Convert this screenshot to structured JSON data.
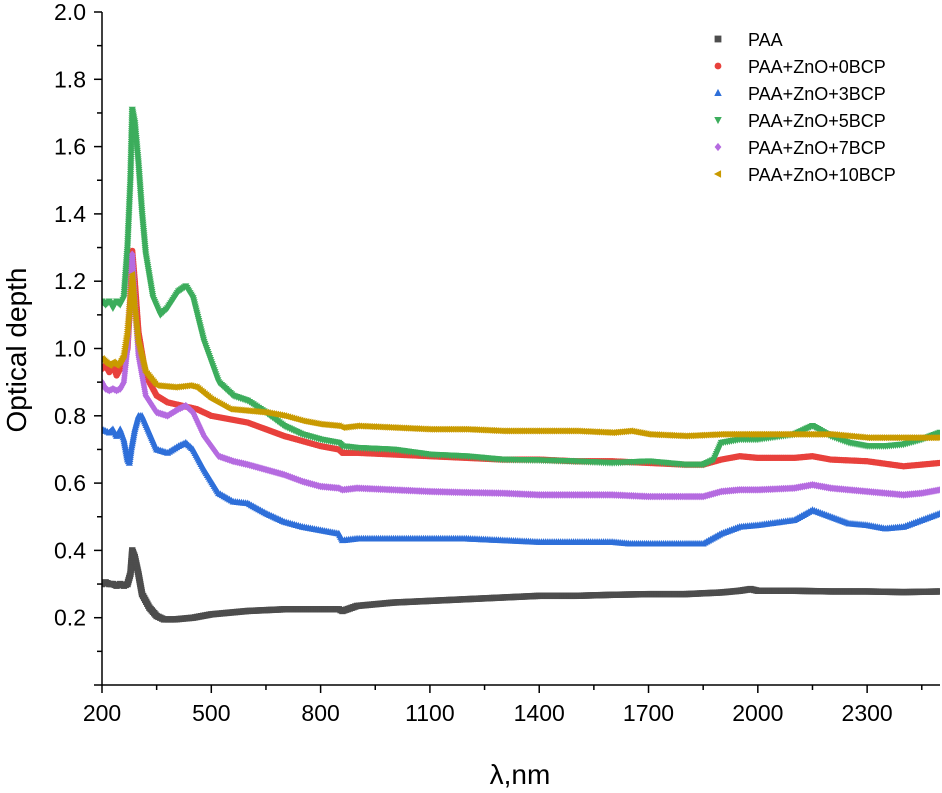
{
  "chart_data": {
    "type": "scatter",
    "title": "",
    "xlabel": "λ,nm",
    "ylabel": "Optical depth",
    "xlim": [
      200,
      2500
    ],
    "ylim": [
      0.0,
      2.0
    ],
    "xticks": [
      200,
      500,
      800,
      1100,
      1400,
      1700,
      2000,
      2300
    ],
    "yticks": [
      "0.2",
      "0.4",
      "0.6",
      "0.8",
      "1.0",
      "1.2",
      "1.4",
      "1.6",
      "1.8",
      "2.0"
    ],
    "legend_position": "top-right",
    "series": [
      {
        "name": "PAA",
        "color": "#4d4d4d",
        "marker": "square",
        "points": [
          [
            200,
            0.3
          ],
          [
            210,
            0.305
          ],
          [
            220,
            0.3
          ],
          [
            230,
            0.3
          ],
          [
            240,
            0.295
          ],
          [
            250,
            0.3
          ],
          [
            260,
            0.295
          ],
          [
            270,
            0.3
          ],
          [
            278,
            0.33
          ],
          [
            283,
            0.4
          ],
          [
            290,
            0.38
          ],
          [
            300,
            0.33
          ],
          [
            310,
            0.27
          ],
          [
            330,
            0.23
          ],
          [
            350,
            0.205
          ],
          [
            370,
            0.195
          ],
          [
            400,
            0.195
          ],
          [
            450,
            0.2
          ],
          [
            500,
            0.21
          ],
          [
            600,
            0.22
          ],
          [
            700,
            0.225
          ],
          [
            800,
            0.225
          ],
          [
            850,
            0.225
          ],
          [
            860,
            0.22
          ],
          [
            900,
            0.235
          ],
          [
            1000,
            0.245
          ],
          [
            1100,
            0.25
          ],
          [
            1200,
            0.255
          ],
          [
            1300,
            0.26
          ],
          [
            1400,
            0.265
          ],
          [
            1500,
            0.265
          ],
          [
            1600,
            0.268
          ],
          [
            1700,
            0.27
          ],
          [
            1800,
            0.27
          ],
          [
            1900,
            0.275
          ],
          [
            1950,
            0.28
          ],
          [
            1980,
            0.285
          ],
          [
            2000,
            0.28
          ],
          [
            2100,
            0.28
          ],
          [
            2200,
            0.278
          ],
          [
            2300,
            0.278
          ],
          [
            2400,
            0.276
          ],
          [
            2500,
            0.278
          ]
        ]
      },
      {
        "name": "PAA+ZnO+0BCP",
        "color": "#e8413c",
        "marker": "circle",
        "points": [
          [
            200,
            0.94
          ],
          [
            210,
            0.95
          ],
          [
            220,
            0.93
          ],
          [
            230,
            0.95
          ],
          [
            240,
            0.92
          ],
          [
            250,
            0.94
          ],
          [
            260,
            0.96
          ],
          [
            270,
            1.0
          ],
          [
            278,
            1.15
          ],
          [
            283,
            1.29
          ],
          [
            290,
            1.2
          ],
          [
            300,
            1.05
          ],
          [
            320,
            0.92
          ],
          [
            350,
            0.86
          ],
          [
            380,
            0.84
          ],
          [
            420,
            0.83
          ],
          [
            460,
            0.82
          ],
          [
            500,
            0.8
          ],
          [
            550,
            0.79
          ],
          [
            600,
            0.78
          ],
          [
            700,
            0.74
          ],
          [
            800,
            0.71
          ],
          [
            850,
            0.7
          ],
          [
            860,
            0.69
          ],
          [
            900,
            0.69
          ],
          [
            1000,
            0.685
          ],
          [
            1100,
            0.68
          ],
          [
            1200,
            0.675
          ],
          [
            1300,
            0.67
          ],
          [
            1400,
            0.67
          ],
          [
            1500,
            0.665
          ],
          [
            1600,
            0.665
          ],
          [
            1700,
            0.66
          ],
          [
            1800,
            0.655
          ],
          [
            1850,
            0.655
          ],
          [
            1900,
            0.67
          ],
          [
            1950,
            0.68
          ],
          [
            2000,
            0.675
          ],
          [
            2100,
            0.675
          ],
          [
            2150,
            0.68
          ],
          [
            2200,
            0.67
          ],
          [
            2300,
            0.665
          ],
          [
            2400,
            0.65
          ],
          [
            2500,
            0.66
          ]
        ]
      },
      {
        "name": "PAA+ZnO+3BCP",
        "color": "#2e6fd9",
        "marker": "triangle-up",
        "points": [
          [
            200,
            0.76
          ],
          [
            210,
            0.755
          ],
          [
            220,
            0.75
          ],
          [
            230,
            0.76
          ],
          [
            240,
            0.74
          ],
          [
            250,
            0.76
          ],
          [
            260,
            0.73
          ],
          [
            270,
            0.67
          ],
          [
            275,
            0.66
          ],
          [
            280,
            0.7
          ],
          [
            290,
            0.76
          ],
          [
            300,
            0.8
          ],
          [
            310,
            0.8
          ],
          [
            330,
            0.75
          ],
          [
            350,
            0.7
          ],
          [
            380,
            0.69
          ],
          [
            410,
            0.71
          ],
          [
            430,
            0.72
          ],
          [
            450,
            0.7
          ],
          [
            480,
            0.64
          ],
          [
            520,
            0.57
          ],
          [
            560,
            0.545
          ],
          [
            600,
            0.54
          ],
          [
            650,
            0.51
          ],
          [
            700,
            0.485
          ],
          [
            750,
            0.47
          ],
          [
            800,
            0.46
          ],
          [
            850,
            0.45
          ],
          [
            860,
            0.43
          ],
          [
            900,
            0.435
          ],
          [
            1000,
            0.435
          ],
          [
            1100,
            0.435
          ],
          [
            1200,
            0.435
          ],
          [
            1300,
            0.43
          ],
          [
            1400,
            0.425
          ],
          [
            1500,
            0.425
          ],
          [
            1600,
            0.425
          ],
          [
            1650,
            0.42
          ],
          [
            1700,
            0.42
          ],
          [
            1800,
            0.42
          ],
          [
            1850,
            0.42
          ],
          [
            1900,
            0.45
          ],
          [
            1950,
            0.47
          ],
          [
            2000,
            0.475
          ],
          [
            2100,
            0.49
          ],
          [
            2150,
            0.52
          ],
          [
            2200,
            0.5
          ],
          [
            2250,
            0.48
          ],
          [
            2300,
            0.475
          ],
          [
            2350,
            0.465
          ],
          [
            2400,
            0.47
          ],
          [
            2450,
            0.49
          ],
          [
            2500,
            0.51
          ]
        ]
      },
      {
        "name": "PAA+ZnO+5BCP",
        "color": "#3cad5c",
        "marker": "triangle-down",
        "points": [
          [
            200,
            1.14
          ],
          [
            210,
            1.13
          ],
          [
            220,
            1.14
          ],
          [
            230,
            1.12
          ],
          [
            240,
            1.14
          ],
          [
            250,
            1.13
          ],
          [
            260,
            1.15
          ],
          [
            270,
            1.3
          ],
          [
            278,
            1.5
          ],
          [
            283,
            1.71
          ],
          [
            290,
            1.67
          ],
          [
            300,
            1.55
          ],
          [
            310,
            1.4
          ],
          [
            320,
            1.28
          ],
          [
            340,
            1.15
          ],
          [
            360,
            1.1
          ],
          [
            380,
            1.12
          ],
          [
            410,
            1.17
          ],
          [
            430,
            1.185
          ],
          [
            450,
            1.15
          ],
          [
            480,
            1.02
          ],
          [
            520,
            0.9
          ],
          [
            560,
            0.86
          ],
          [
            600,
            0.845
          ],
          [
            650,
            0.81
          ],
          [
            700,
            0.77
          ],
          [
            750,
            0.745
          ],
          [
            800,
            0.73
          ],
          [
            850,
            0.72
          ],
          [
            860,
            0.71
          ],
          [
            900,
            0.705
          ],
          [
            1000,
            0.7
          ],
          [
            1100,
            0.685
          ],
          [
            1200,
            0.68
          ],
          [
            1300,
            0.67
          ],
          [
            1400,
            0.668
          ],
          [
            1500,
            0.665
          ],
          [
            1600,
            0.66
          ],
          [
            1700,
            0.665
          ],
          [
            1800,
            0.655
          ],
          [
            1850,
            0.655
          ],
          [
            1880,
            0.67
          ],
          [
            1900,
            0.72
          ],
          [
            1950,
            0.73
          ],
          [
            2000,
            0.73
          ],
          [
            2100,
            0.745
          ],
          [
            2150,
            0.77
          ],
          [
            2200,
            0.74
          ],
          [
            2250,
            0.72
          ],
          [
            2300,
            0.71
          ],
          [
            2350,
            0.71
          ],
          [
            2400,
            0.715
          ],
          [
            2450,
            0.73
          ],
          [
            2500,
            0.75
          ]
        ]
      },
      {
        "name": "PAA+ZnO+7BCP",
        "color": "#b56be0",
        "marker": "diamond",
        "points": [
          [
            200,
            0.9
          ],
          [
            210,
            0.88
          ],
          [
            220,
            0.875
          ],
          [
            230,
            0.88
          ],
          [
            240,
            0.875
          ],
          [
            250,
            0.88
          ],
          [
            260,
            0.9
          ],
          [
            270,
            1.0
          ],
          [
            278,
            1.15
          ],
          [
            283,
            1.28
          ],
          [
            290,
            1.15
          ],
          [
            300,
            0.98
          ],
          [
            320,
            0.86
          ],
          [
            350,
            0.81
          ],
          [
            380,
            0.8
          ],
          [
            410,
            0.82
          ],
          [
            430,
            0.83
          ],
          [
            450,
            0.81
          ],
          [
            480,
            0.74
          ],
          [
            520,
            0.68
          ],
          [
            560,
            0.665
          ],
          [
            600,
            0.655
          ],
          [
            650,
            0.64
          ],
          [
            700,
            0.625
          ],
          [
            750,
            0.605
          ],
          [
            800,
            0.59
          ],
          [
            850,
            0.585
          ],
          [
            860,
            0.58
          ],
          [
            900,
            0.585
          ],
          [
            1000,
            0.58
          ],
          [
            1100,
            0.575
          ],
          [
            1200,
            0.572
          ],
          [
            1300,
            0.57
          ],
          [
            1400,
            0.565
          ],
          [
            1500,
            0.565
          ],
          [
            1600,
            0.565
          ],
          [
            1700,
            0.56
          ],
          [
            1800,
            0.56
          ],
          [
            1850,
            0.56
          ],
          [
            1900,
            0.575
          ],
          [
            1950,
            0.58
          ],
          [
            2000,
            0.58
          ],
          [
            2100,
            0.585
          ],
          [
            2150,
            0.595
          ],
          [
            2200,
            0.585
          ],
          [
            2300,
            0.575
          ],
          [
            2400,
            0.565
          ],
          [
            2450,
            0.57
          ],
          [
            2500,
            0.58
          ]
        ]
      },
      {
        "name": "PAA+ZnO+10BCP",
        "color": "#c99a00",
        "marker": "triangle-left",
        "points": [
          [
            200,
            0.97
          ],
          [
            210,
            0.96
          ],
          [
            220,
            0.95
          ],
          [
            230,
            0.96
          ],
          [
            240,
            0.95
          ],
          [
            250,
            0.96
          ],
          [
            260,
            0.98
          ],
          [
            270,
            1.05
          ],
          [
            278,
            1.15
          ],
          [
            283,
            1.22
          ],
          [
            290,
            1.12
          ],
          [
            300,
            1.02
          ],
          [
            320,
            0.93
          ],
          [
            350,
            0.89
          ],
          [
            400,
            0.885
          ],
          [
            440,
            0.89
          ],
          [
            460,
            0.885
          ],
          [
            500,
            0.85
          ],
          [
            550,
            0.82
          ],
          [
            600,
            0.815
          ],
          [
            650,
            0.81
          ],
          [
            700,
            0.8
          ],
          [
            750,
            0.785
          ],
          [
            800,
            0.775
          ],
          [
            850,
            0.77
          ],
          [
            860,
            0.765
          ],
          [
            900,
            0.77
          ],
          [
            1000,
            0.765
          ],
          [
            1100,
            0.76
          ],
          [
            1200,
            0.76
          ],
          [
            1300,
            0.755
          ],
          [
            1400,
            0.755
          ],
          [
            1500,
            0.755
          ],
          [
            1600,
            0.75
          ],
          [
            1650,
            0.755
          ],
          [
            1700,
            0.745
          ],
          [
            1800,
            0.74
          ],
          [
            1900,
            0.745
          ],
          [
            2000,
            0.745
          ],
          [
            2100,
            0.745
          ],
          [
            2200,
            0.745
          ],
          [
            2300,
            0.735
          ],
          [
            2400,
            0.735
          ],
          [
            2500,
            0.735
          ]
        ]
      }
    ]
  }
}
